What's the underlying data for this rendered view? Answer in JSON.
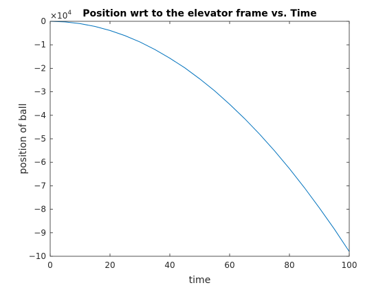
{
  "chart_data": {
    "type": "line",
    "title": "Position wrt to the elevator frame vs. Time",
    "xlabel": "time",
    "ylabel": "position of ball",
    "y_exponent_label": "×10",
    "y_exponent_power": "4",
    "xlim": [
      0,
      100
    ],
    "ylim": [
      -10,
      0
    ],
    "x_ticks": [
      0,
      20,
      40,
      60,
      80,
      100
    ],
    "x_tick_labels": [
      "0",
      "20",
      "40",
      "60",
      "80",
      "100"
    ],
    "y_ticks": [
      0,
      -1,
      -2,
      -3,
      -4,
      -5,
      -6,
      -7,
      -8,
      -9,
      -10
    ],
    "y_tick_labels": [
      "0",
      "−1",
      "−2",
      "−3",
      "−4",
      "−5",
      "−6",
      "−7",
      "−8",
      "−9",
      "−10"
    ],
    "grid": false,
    "series": [
      {
        "color": "#0072bd",
        "x": [
          0,
          5,
          10,
          15,
          20,
          25,
          30,
          35,
          40,
          45,
          50,
          55,
          60,
          65,
          70,
          75,
          80,
          85,
          90,
          95,
          100
        ],
        "y": [
          0,
          -0.025,
          -0.098,
          -0.22,
          -0.39,
          -0.61,
          -0.88,
          -1.2,
          -1.57,
          -1.98,
          -2.45,
          -2.96,
          -3.53,
          -4.14,
          -4.8,
          -5.51,
          -6.27,
          -7.08,
          -7.94,
          -8.84,
          -9.8
        ]
      }
    ]
  }
}
